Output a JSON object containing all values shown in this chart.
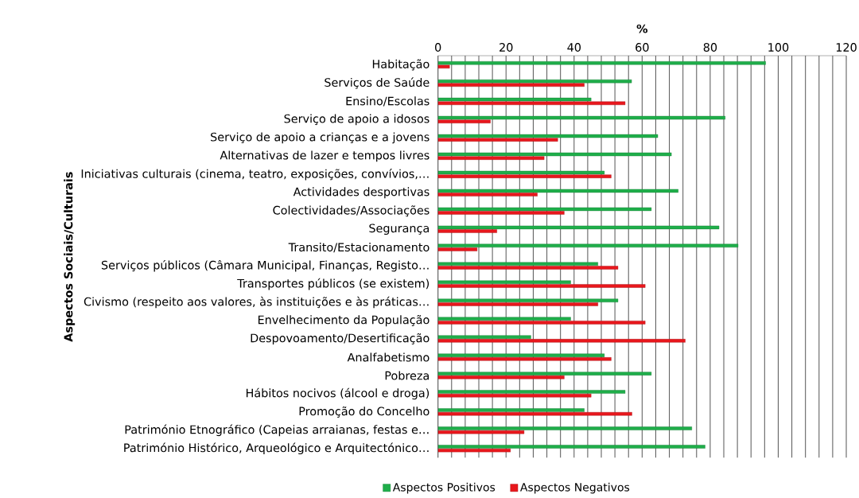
{
  "chart_data": {
    "type": "bar",
    "orientation": "horizontal",
    "xlabel": "%",
    "ylabel": "Aspectos Sociais/Culturais",
    "categories": [
      "Habitação",
      "Serviços de Saúde",
      "Ensino/Escolas",
      "Serviço de apoio a idosos",
      "Serviço de apoio a crianças e a jovens",
      "Alternativas de lazer e tempos livres",
      "Iniciativas culturais (cinema, teatro, exposições, convívios,…",
      "Actividades desportivas",
      "Colectividades/Associações",
      "Segurança",
      "Transito/Estacionamento",
      "Serviços públicos (Câmara Municipal, Finanças, Registo…",
      "Transportes públicos (se existem)",
      "Civismo (respeito aos valores, às instituições e às práticas…",
      "Envelhecimento da População",
      "Despovoamento/Desertificação",
      "Analfabetismo",
      "Pobreza",
      "Hábitos nocivos (álcool e droga)",
      "Promoção do Concelho",
      "Património Etnográfico (Capeias arraianas, festas e…",
      "Património Histórico, Arqueológico e Arquitectónico…"
    ],
    "series": [
      {
        "name": "Aspectos Positivos",
        "color": "#1fae4a",
        "values": [
          96.3,
          56.9,
          45,
          84.4,
          64.6,
          68.6,
          48.9,
          70.6,
          62.7,
          82.6,
          88.2,
          47,
          39,
          52.9,
          39,
          27.3,
          48.9,
          62.7,
          55,
          43,
          74.6,
          78.5
        ]
      },
      {
        "name": "Aspectos Negativos",
        "color": "#e8171c",
        "values": [
          3.4,
          43,
          55,
          15.4,
          35.2,
          31.2,
          50.9,
          29.2,
          37.1,
          17.3,
          11.5,
          52.9,
          60.9,
          47,
          60.9,
          72.7,
          50.9,
          37.1,
          45,
          57,
          25.3,
          21.3
        ]
      }
    ],
    "xlim": [
      0,
      120
    ],
    "xticks": [
      0,
      20,
      40,
      60,
      80,
      100,
      120,
      {
        "value": 4,
        "label": null
      },
      {
        "value": 8,
        "label": null
      },
      {
        "value": 12,
        "label": null
      },
      {
        "value": 16,
        "label": null
      },
      {
        "value": 24,
        "label": null
      },
      {
        "value": 28,
        "label": null
      },
      {
        "value": 32,
        "label": null
      },
      {
        "value": 36,
        "label": null
      },
      {
        "value": 44,
        "label": null
      },
      {
        "value": 48,
        "label": null
      },
      {
        "value": 52,
        "label": null
      },
      {
        "value": 56,
        "label": null
      },
      {
        "value": 64,
        "label": null
      },
      {
        "value": 68,
        "label": null
      },
      {
        "value": 72,
        "label": null
      },
      {
        "value": 76,
        "label": null
      },
      {
        "value": 84,
        "label": null
      },
      {
        "value": 88,
        "label": null
      },
      {
        "value": 92,
        "label": null
      },
      {
        "value": 96,
        "label": null
      },
      {
        "value": 104,
        "label": null
      },
      {
        "value": 108,
        "label": null
      },
      {
        "value": 112,
        "label": null
      },
      {
        "value": 116,
        "label": null
      }
    ],
    "grid": "x",
    "legend": "bottom"
  }
}
